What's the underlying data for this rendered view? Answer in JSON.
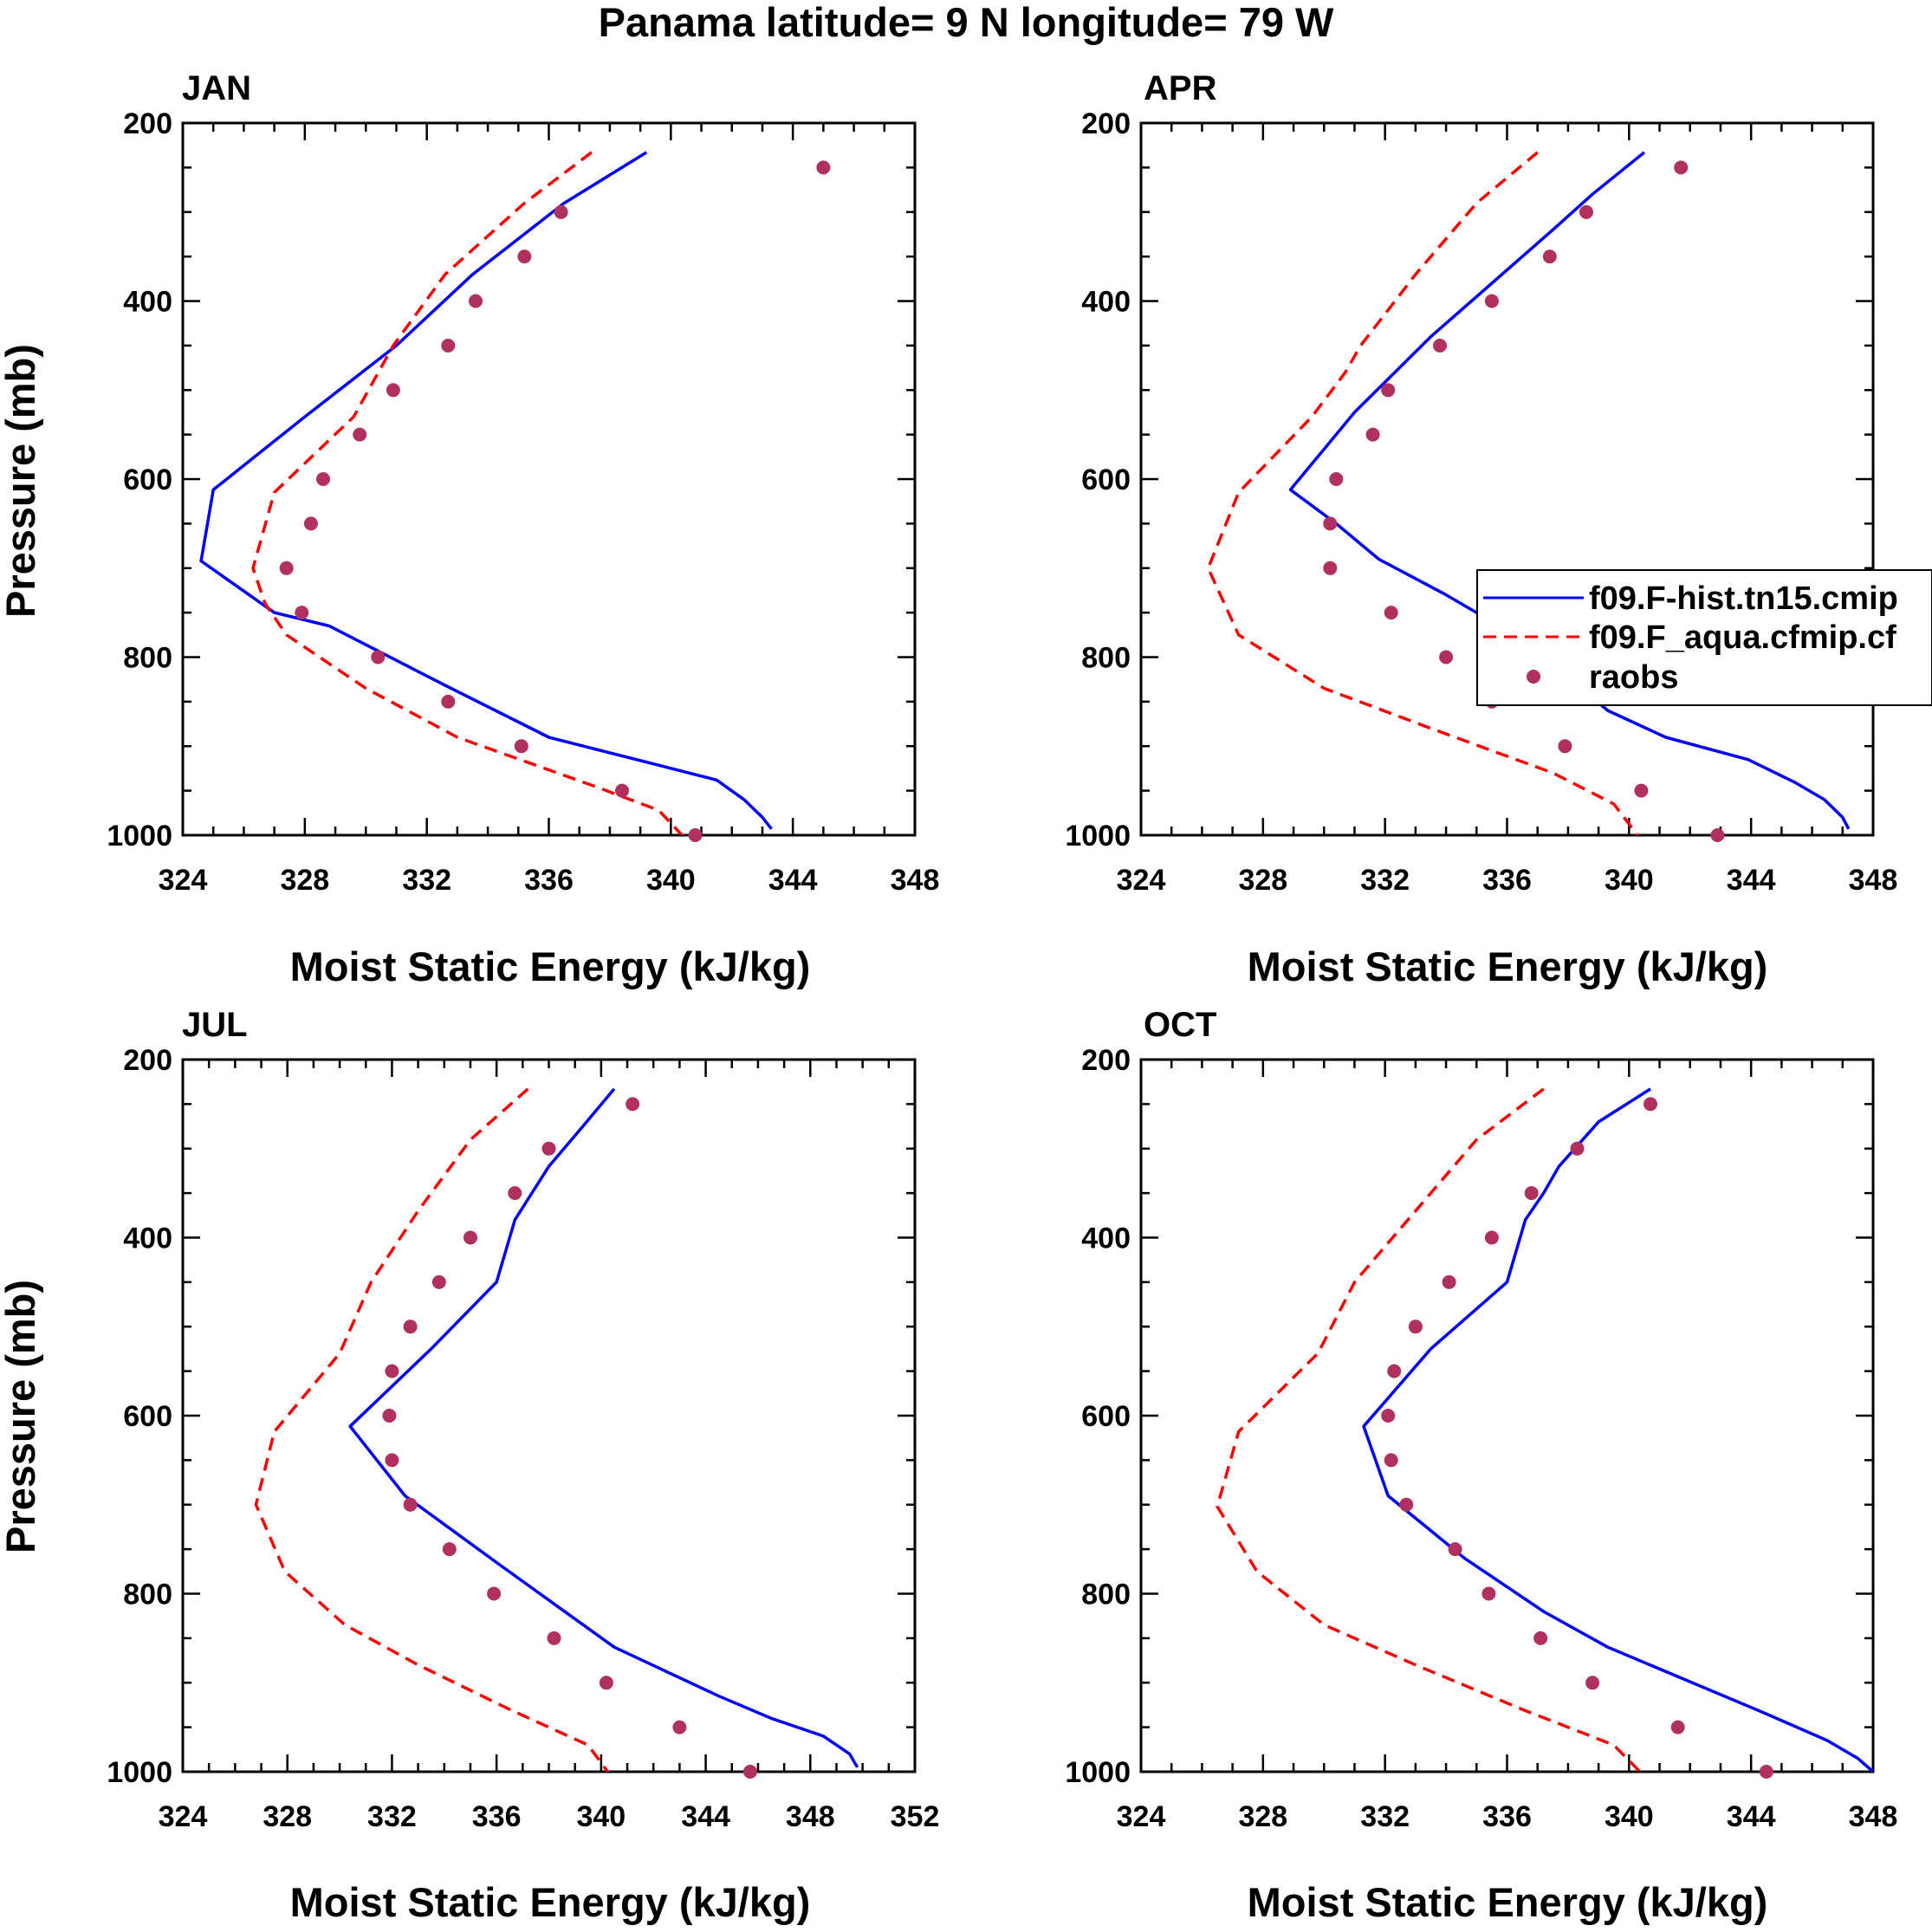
{
  "figure": {
    "title": "Panama  latitude= 9 N longitude= 79 W"
  },
  "legend": {
    "entries": [
      {
        "label": "f09.F-hist.tn15.cmip",
        "color": "#0000ff",
        "style": "solid"
      },
      {
        "label": "f09.F_aqua.cfmip.cf",
        "color": "#ff0000",
        "style": "dashed"
      },
      {
        "label": "raobs",
        "color": "#b03060",
        "style": "marker"
      }
    ]
  },
  "chart_data": [
    {
      "type": "line",
      "title": "JAN",
      "xlabel": "Moist Static Energy (kJ/kg)",
      "ylabel": "Pressure (mb)",
      "xlim": [
        324,
        348
      ],
      "ylim": [
        200,
        1000
      ],
      "y_inverted": true,
      "xticks": [
        324,
        328,
        332,
        336,
        340,
        344,
        348
      ],
      "yticks": [
        200,
        400,
        600,
        800,
        1000
      ],
      "series": [
        {
          "name": "f09.F-hist.tn15.cmip",
          "color": "#0000ff",
          "style": "solid",
          "x": [
            339.2,
            336.5,
            333.5,
            331.0,
            328.0,
            325.0,
            324.6,
            327.0,
            328.8,
            332.5,
            336.0,
            341.5,
            342.4,
            343.0,
            343.3
          ],
          "y": [
            233,
            290,
            370,
            450,
            530,
            612,
            692,
            750,
            765,
            830,
            890,
            938,
            960,
            980,
            993
          ]
        },
        {
          "name": "f09.F_aqua.cfmip.cf",
          "color": "#ff0000",
          "style": "dashed",
          "x": [
            337.4,
            335.2,
            332.6,
            330.9,
            329.6,
            327.0,
            326.3,
            326.7,
            327.4,
            330.0,
            333.0,
            337.5,
            339.6,
            340.5
          ],
          "y": [
            233,
            290,
            370,
            450,
            530,
            615,
            700,
            740,
            775,
            835,
            890,
            945,
            972,
            1005
          ]
        }
      ],
      "scatter": {
        "name": "raobs",
        "color": "#b03060",
        "x": [
          345.0,
          336.4,
          335.2,
          333.6,
          332.7,
          330.9,
          329.8,
          328.6,
          328.2,
          327.4,
          327.9,
          330.4,
          332.7,
          335.1,
          338.4,
          340.8
        ],
        "y": [
          250,
          300,
          350,
          400,
          450,
          500,
          550,
          600,
          650,
          700,
          750,
          800,
          850,
          900,
          950,
          1000
        ]
      }
    },
    {
      "type": "line",
      "title": "APR",
      "xlabel": "Moist Static Energy (kJ/kg)",
      "ylabel": "",
      "xlim": [
        324,
        348
      ],
      "ylim": [
        200,
        1000
      ],
      "y_inverted": true,
      "xticks": [
        324,
        328,
        332,
        336,
        340,
        344,
        348
      ],
      "yticks": [
        200,
        400,
        600,
        800,
        1000
      ],
      "series": [
        {
          "name": "f09.F-hist.tn15.cmip",
          "color": "#0000ff",
          "style": "solid",
          "x": [
            340.5,
            338.8,
            337.5,
            335.5,
            333.5,
            331.0,
            328.9,
            330.4,
            331.8,
            334.0,
            336.5,
            339.3,
            341.2,
            343.9,
            345.4,
            346.4,
            347.0,
            347.2
          ],
          "y": [
            233,
            280,
            320,
            380,
            440,
            525,
            612,
            650,
            690,
            730,
            780,
            860,
            890,
            915,
            940,
            960,
            980,
            993
          ]
        },
        {
          "name": "f09.F_aqua.cfmip.cf",
          "color": "#ff0000",
          "style": "dashed",
          "x": [
            337.0,
            335.0,
            333.0,
            331.2,
            330.7,
            329.6,
            327.2,
            326.2,
            327.2,
            330.0,
            333.5,
            337.5,
            339.5,
            340.5
          ],
          "y": [
            233,
            290,
            370,
            450,
            480,
            530,
            615,
            700,
            775,
            835,
            880,
            930,
            965,
            1010
          ]
        }
      ],
      "scatter": {
        "name": "raobs",
        "color": "#b03060",
        "x": [
          341.7,
          338.6,
          337.4,
          335.5,
          333.8,
          332.1,
          331.6,
          330.4,
          330.2,
          330.2,
          332.2,
          334.0,
          335.5,
          337.9,
          340.4,
          342.9
        ],
        "y": [
          250,
          300,
          350,
          400,
          450,
          500,
          550,
          600,
          650,
          700,
          750,
          800,
          850,
          900,
          950,
          1000
        ]
      }
    },
    {
      "type": "line",
      "title": "JUL",
      "xlabel": "Moist Static Energy (kJ/kg)",
      "ylabel": "Pressure (mb)",
      "xlim": [
        324,
        352
      ],
      "ylim": [
        200,
        1000
      ],
      "y_inverted": true,
      "xticks": [
        324,
        328,
        332,
        336,
        340,
        344,
        348,
        352
      ],
      "yticks": [
        200,
        400,
        600,
        800,
        1000
      ],
      "series": [
        {
          "name": "f09.F-hist.tn15.cmip",
          "color": "#0000ff",
          "style": "solid",
          "x": [
            340.5,
            339.3,
            338.0,
            336.7,
            336.0,
            333.5,
            330.4,
            332.5,
            336.0,
            340.5,
            344.5,
            346.5,
            348.5,
            349.5,
            349.8
          ],
          "y": [
            233,
            275,
            320,
            380,
            450,
            525,
            612,
            690,
            765,
            860,
            915,
            940,
            960,
            980,
            995
          ]
        },
        {
          "name": "f09.F_aqua.cfmip.cf",
          "color": "#ff0000",
          "style": "dashed",
          "x": [
            337.2,
            335.0,
            333.0,
            331.2,
            330.0,
            327.5,
            326.8,
            327.9,
            330.2,
            333.0,
            336.5,
            339.5,
            340.5
          ],
          "y": [
            233,
            290,
            370,
            450,
            530,
            618,
            700,
            775,
            835,
            880,
            930,
            970,
            1010
          ]
        }
      ],
      "scatter": {
        "name": "raobs",
        "color": "#b03060",
        "x": [
          341.2,
          338.0,
          336.7,
          335.0,
          333.8,
          332.7,
          332.0,
          331.9,
          332.0,
          332.7,
          334.2,
          335.9,
          338.2,
          340.2,
          343.0,
          345.7
        ],
        "y": [
          250,
          300,
          350,
          400,
          450,
          500,
          550,
          600,
          650,
          700,
          750,
          800,
          850,
          900,
          950,
          1000
        ]
      }
    },
    {
      "type": "line",
      "title": "OCT",
      "xlabel": "Moist Static Energy (kJ/kg)",
      "ylabel": "",
      "xlim": [
        324,
        348
      ],
      "ylim": [
        200,
        1000
      ],
      "y_inverted": true,
      "xticks": [
        324,
        328,
        332,
        336,
        340,
        344,
        348
      ],
      "yticks": [
        200,
        400,
        600,
        800,
        1000
      ],
      "series": [
        {
          "name": "f09.F-hist.tn15.cmip",
          "color": "#0000ff",
          "style": "solid",
          "x": [
            340.7,
            339.0,
            337.7,
            337.2,
            336.6,
            336.0,
            333.5,
            331.3,
            332.1,
            334.6,
            337.2,
            339.3,
            344.5,
            346.5,
            347.5,
            348.0
          ],
          "y": [
            233,
            270,
            320,
            350,
            380,
            450,
            525,
            612,
            690,
            760,
            820,
            860,
            935,
            965,
            985,
            1000
          ]
        },
        {
          "name": "f09.F_aqua.cfmip.cf",
          "color": "#ff0000",
          "style": "dashed",
          "x": [
            337.2,
            335.0,
            333.0,
            331.0,
            329.8,
            327.2,
            326.5,
            327.8,
            330.0,
            333.0,
            336.5,
            339.5,
            340.5
          ],
          "y": [
            233,
            290,
            370,
            450,
            530,
            618,
            702,
            775,
            835,
            880,
            930,
            970,
            1005
          ]
        }
      ],
      "scatter": {
        "name": "raobs",
        "color": "#b03060",
        "x": [
          340.7,
          338.3,
          336.8,
          335.5,
          334.1,
          333.0,
          332.3,
          332.1,
          332.2,
          332.7,
          334.3,
          335.4,
          337.1,
          338.8,
          341.6,
          344.5
        ],
        "y": [
          250,
          300,
          350,
          400,
          450,
          500,
          550,
          600,
          650,
          700,
          750,
          800,
          850,
          900,
          950,
          1000
        ]
      }
    }
  ]
}
